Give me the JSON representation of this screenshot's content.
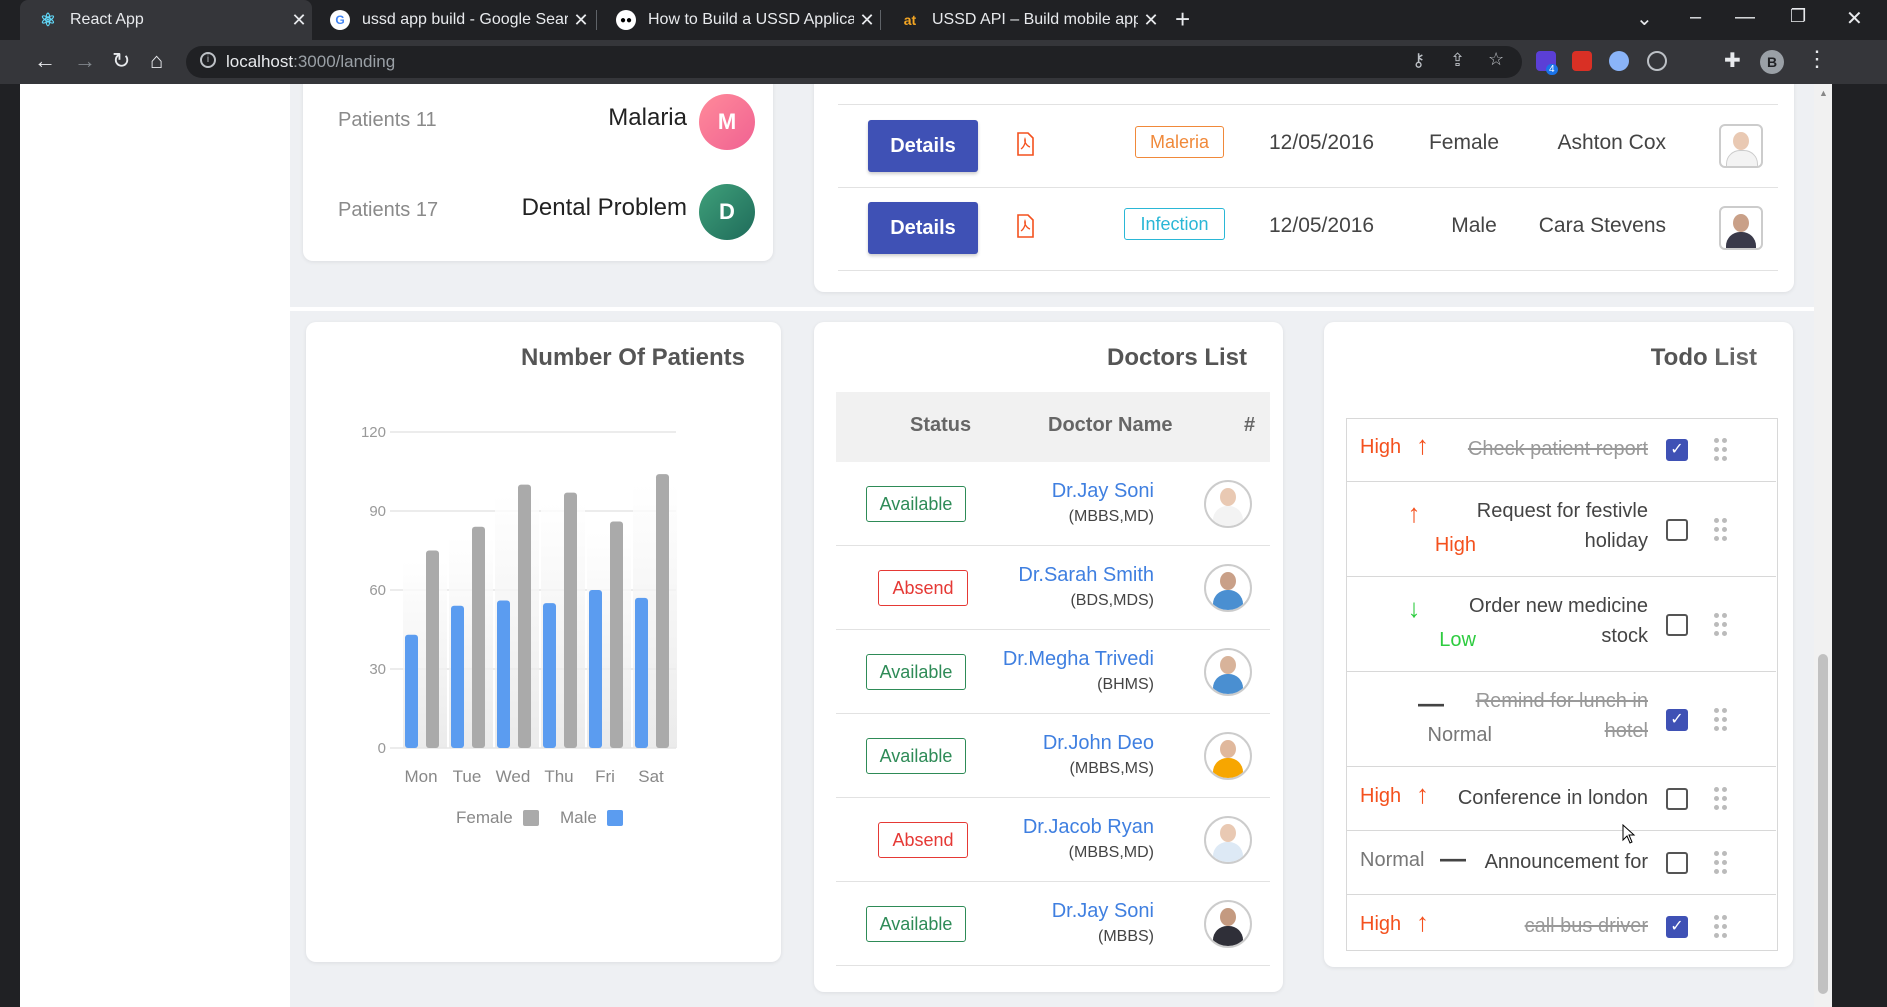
{
  "browser": {
    "tabs": [
      {
        "title": "React App",
        "icon": "react-icon",
        "active": true
      },
      {
        "title": "ussd app build - Google Search",
        "icon": "google-icon",
        "active": false
      },
      {
        "title": "How to Build a USSD Application",
        "icon": "medium-icon",
        "active": false
      },
      {
        "title": "USSD API – Build mobile apps ac",
        "icon": "africastalking-icon",
        "active": false
      }
    ],
    "url_host": "localhost",
    "url_path": ":3000/landing",
    "profile_initial": "B",
    "extension_badge": "4"
  },
  "diseases": [
    {
      "patients": "Patients 11",
      "name": "Malaria",
      "initial": "M",
      "color": "#f06292"
    },
    {
      "patients": "Patients 17",
      "name": "Dental Problem",
      "initial": "D",
      "color": "#2e8b6e"
    }
  ],
  "patients_table": {
    "rows": [
      {
        "action": "Details",
        "disease": "Maleria",
        "badge_color": "#f0893a",
        "date": "12/05/2016",
        "gender": "Female",
        "name": "Ashton Cox"
      },
      {
        "action": "Details",
        "disease": "Infection",
        "badge_color": "#2ab7d6",
        "date": "12/05/2016",
        "gender": "Male",
        "name": "Cara Stevens"
      }
    ]
  },
  "patients_chart": {
    "title": "Number Of Patients",
    "legend": [
      "Female",
      "Male"
    ]
  },
  "chart_data": {
    "type": "bar",
    "categories": [
      "Mon",
      "Tue",
      "Wed",
      "Thu",
      "Fri",
      "Sat"
    ],
    "series": [
      {
        "name": "Female",
        "color": "#aaaaaa",
        "values": [
          75,
          84,
          100,
          97,
          86,
          104
        ]
      },
      {
        "name": "Male",
        "color": "#5b9cf0",
        "values": [
          43,
          54,
          56,
          55,
          60,
          57
        ]
      }
    ],
    "yticks": [
      0,
      30,
      60,
      90,
      120
    ],
    "ylim": [
      0,
      120
    ],
    "legend_position": "bottom",
    "grid": true
  },
  "doctors": {
    "title": "Doctors List",
    "headers": {
      "status": "Status",
      "name": "Doctor Name",
      "hash": "#"
    },
    "rows": [
      {
        "status": "Available",
        "name": "Dr.Jay Soni",
        "degree": "(MBBS,MD)"
      },
      {
        "status": "Absend",
        "name": "Dr.Sarah Smith",
        "degree": "(BDS,MDS)"
      },
      {
        "status": "Available",
        "name": "Dr.Megha Trivedi",
        "degree": "(BHMS)"
      },
      {
        "status": "Available",
        "name": "Dr.John Deo",
        "degree": "(MBBS,MS)"
      },
      {
        "status": "Absend",
        "name": "Dr.Jacob Ryan",
        "degree": "(MBBS,MD)"
      },
      {
        "status": "Available",
        "name": "Dr.Jay Soni",
        "degree": "(MBBS)"
      }
    ]
  },
  "todo": {
    "title_bold": "Todo",
    "title_rest": " List",
    "items": [
      {
        "priority": "High",
        "arrow": "↑",
        "task_lines": [
          "Check patient report"
        ],
        "done": true
      },
      {
        "priority": "High",
        "arrow": "↑",
        "task_lines": [
          "Request for festivle",
          "holiday"
        ],
        "done": false
      },
      {
        "priority": "Low",
        "arrow": "↓",
        "task_lines": [
          "Order new medicine",
          "stock"
        ],
        "done": false
      },
      {
        "priority": "Normal",
        "arrow": "—",
        "task_lines": [
          "Remind for lunch in",
          "hotel"
        ],
        "done": true
      },
      {
        "priority": "High",
        "arrow": "↑",
        "task_lines": [
          "Conference in london"
        ],
        "done": false
      },
      {
        "priority": "Normal",
        "arrow": "—",
        "task_lines": [
          "Announcement for"
        ],
        "done": false
      },
      {
        "priority": "High",
        "arrow": "↑",
        "task_lines": [
          "call bus driver"
        ],
        "done": true
      }
    ]
  },
  "colors": {
    "primary": "#3f51b5",
    "high": "#f4511e",
    "low": "#2ecc40",
    "normal": "#777777",
    "available": "#2e8b57",
    "absend": "#e53935"
  }
}
